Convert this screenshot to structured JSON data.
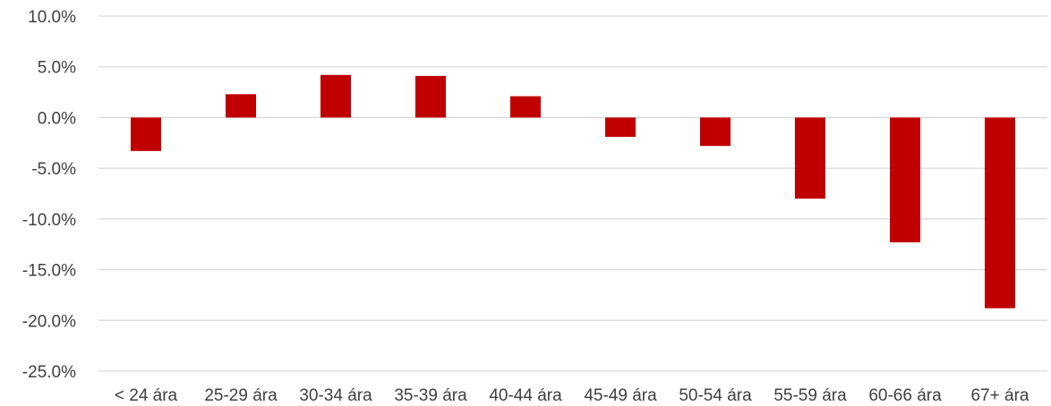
{
  "chart_data": {
    "type": "bar",
    "categories": [
      "< 24 ára",
      "25-29 ára",
      "30-34 ára",
      "35-39 ára",
      "40-44 ára",
      "45-49 ára",
      "50-54 ára",
      "55-59 ára",
      "60-66 ára",
      "67+ ára"
    ],
    "series": [
      {
        "values": [
          -3.3,
          2.3,
          4.2,
          4.1,
          2.1,
          -1.9,
          -2.8,
          -8.0,
          -12.3,
          -18.8
        ]
      }
    ],
    "y_ticks": [
      "10.0%",
      "5.0%",
      "0.0%",
      "-5.0%",
      "-10.0%",
      "-15.0%",
      "-20.0%",
      "-25.0%"
    ],
    "ylim": [
      -25,
      10
    ],
    "title": "",
    "xlabel": "",
    "ylabel": "",
    "grid": true,
    "legend": "none",
    "colors": {
      "bar": "#c00000",
      "grid": "#d9d9d9",
      "text": "#404040"
    }
  }
}
